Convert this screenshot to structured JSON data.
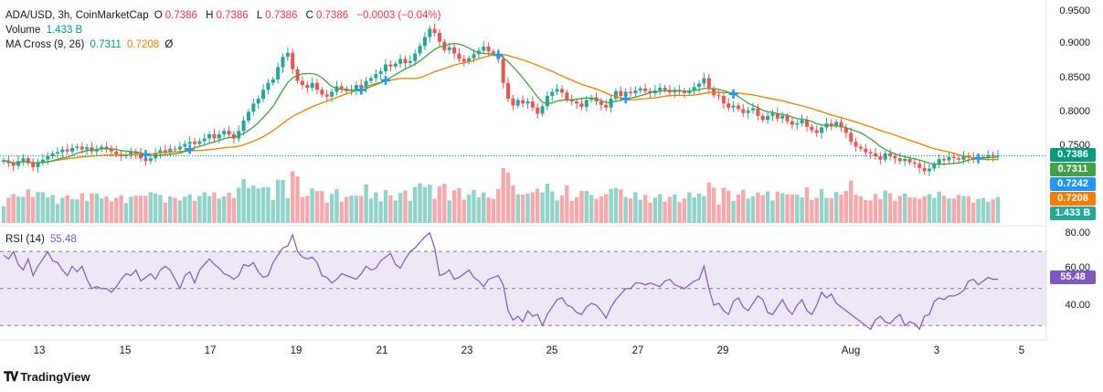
{
  "legend": {
    "symbol": "ADA/USD, 3h, CoinMarketCap",
    "o_label": "O",
    "o_val": "0.7386",
    "h_label": "H",
    "h_val": "0.7386",
    "l_label": "L",
    "l_val": "0.7386",
    "c_label": "C",
    "c_val": "0.7386",
    "change": "−0.0003 (−0.04%)",
    "volume_label": "Volume",
    "volume_val": "1.433 B",
    "ma_label": "MA Cross (9, 26)",
    "ma_fast": "0.7311",
    "ma_slow": "0.7208",
    "ma_extra": "Ø",
    "rsi_label": "RSI (14)",
    "rsi_val": "55.48"
  },
  "price_axis": {
    "ticks": [
      "0.9500",
      "0.9000",
      "0.8500",
      "0.8000",
      "0.7500"
    ],
    "tags": {
      "last": "0.7386",
      "ma_fast": "0.7311",
      "mid": "0.7242",
      "ma_slow": "0.7208",
      "volume": "1.433 B"
    }
  },
  "rsi_axis": {
    "ticks": [
      "80.00",
      "60.00",
      "40.00"
    ],
    "tag": "55.48"
  },
  "x_axis": {
    "labels": [
      "13",
      "15",
      "17",
      "19",
      "21",
      "23",
      "25",
      "27",
      "29",
      "Aug",
      "3",
      "5"
    ]
  },
  "brand": {
    "name": "TradingView"
  },
  "colors": {
    "up": "#26a69a",
    "down": "#ef5350",
    "vol_up": "#8fd3c9",
    "vol_down": "#f7a8ad",
    "ma_fast": "#43a047",
    "ma_slow": "#f57c00",
    "rsi": "#7e57c2",
    "rsi_band": "#ede7f6",
    "cross": "#2196f3"
  },
  "chart_data": [
    {
      "type": "candlestick",
      "title": "ADA/USD, 3h, CoinMarketCap",
      "ylim": [
        0.7,
        0.955
      ],
      "x_ticks": [
        "13",
        "15",
        "17",
        "19",
        "21",
        "23",
        "25",
        "27",
        "29",
        "Aug",
        "3",
        "5"
      ],
      "y_ticks": [
        0.95,
        0.9,
        0.85,
        0.8,
        0.75
      ],
      "last_price": 0.7386,
      "ma_fast_last": 0.7311,
      "ma_slow_last": 0.7208,
      "close": [
        0.732,
        0.728,
        0.724,
        0.731,
        0.735,
        0.728,
        0.722,
        0.729,
        0.733,
        0.738,
        0.742,
        0.744,
        0.748,
        0.745,
        0.75,
        0.752,
        0.748,
        0.751,
        0.745,
        0.748,
        0.752,
        0.749,
        0.745,
        0.741,
        0.738,
        0.74,
        0.744,
        0.742,
        0.735,
        0.731,
        0.735,
        0.743,
        0.747,
        0.744,
        0.749,
        0.748,
        0.752,
        0.756,
        0.759,
        0.756,
        0.76,
        0.764,
        0.77,
        0.764,
        0.77,
        0.775,
        0.77,
        0.764,
        0.775,
        0.79,
        0.803,
        0.815,
        0.822,
        0.835,
        0.845,
        0.85,
        0.868,
        0.883,
        0.889,
        0.865,
        0.848,
        0.842,
        0.838,
        0.845,
        0.835,
        0.828,
        0.825,
        0.832,
        0.84,
        0.837,
        0.833,
        0.835,
        0.842,
        0.838,
        0.848,
        0.852,
        0.858,
        0.862,
        0.872,
        0.869,
        0.873,
        0.88,
        0.874,
        0.877,
        0.888,
        0.899,
        0.912,
        0.924,
        0.918,
        0.905,
        0.893,
        0.897,
        0.888,
        0.88,
        0.876,
        0.881,
        0.887,
        0.892,
        0.898,
        0.891,
        0.888,
        0.88,
        0.845,
        0.822,
        0.812,
        0.82,
        0.815,
        0.818,
        0.809,
        0.8,
        0.811,
        0.826,
        0.832,
        0.836,
        0.831,
        0.821,
        0.818,
        0.815,
        0.81,
        0.82,
        0.824,
        0.818,
        0.813,
        0.809,
        0.822,
        0.833,
        0.826,
        0.832,
        0.83,
        0.834,
        0.837,
        0.833,
        0.83,
        0.834,
        0.838,
        0.835,
        0.831,
        0.834,
        0.832,
        0.83,
        0.834,
        0.839,
        0.844,
        0.852,
        0.836,
        0.827,
        0.826,
        0.815,
        0.809,
        0.812,
        0.807,
        0.801,
        0.805,
        0.808,
        0.797,
        0.791,
        0.797,
        0.801,
        0.793,
        0.797,
        0.789,
        0.784,
        0.786,
        0.791,
        0.781,
        0.776,
        0.772,
        0.78,
        0.786,
        0.783,
        0.788,
        0.78,
        0.772,
        0.759,
        0.752,
        0.749,
        0.744,
        0.742,
        0.738,
        0.733,
        0.742,
        0.738,
        0.735,
        0.731,
        0.734,
        0.729,
        0.727,
        0.721,
        0.716,
        0.72,
        0.726,
        0.734,
        0.732,
        0.737,
        0.735,
        0.733,
        0.739,
        0.736,
        0.733,
        0.736,
        0.737,
        0.74,
        0.738,
        0.739
      ]
    },
    {
      "type": "bar",
      "title": "Volume",
      "last_value": "1.433 B"
    },
    {
      "type": "line",
      "title": "RSI (14)",
      "ylim": [
        24,
        84
      ],
      "y_ticks": [
        80,
        60,
        40
      ],
      "band": [
        30,
        70
      ],
      "midline": 50,
      "last_value": 55.48,
      "series": [
        {
          "name": "RSI (14)",
          "values": [
            68,
            66,
            70,
            63,
            60,
            66,
            57,
            62,
            66,
            70,
            65,
            64,
            60,
            57,
            62,
            59,
            62,
            55,
            50,
            51,
            50,
            50,
            48,
            51,
            55,
            58,
            57,
            60,
            54,
            56,
            58,
            55,
            60,
            62,
            60,
            55,
            50,
            57,
            59,
            53,
            60,
            63,
            66,
            63,
            61,
            58,
            57,
            55,
            57,
            63,
            62,
            64,
            59,
            56,
            57,
            64,
            68,
            72,
            73,
            79,
            70,
            67,
            66,
            67,
            64,
            57,
            56,
            53,
            55,
            58,
            57,
            56,
            55,
            58,
            62,
            60,
            61,
            65,
            67,
            69,
            63,
            61,
            66,
            70,
            72,
            75,
            78,
            80,
            72,
            57,
            58,
            60,
            55,
            56,
            58,
            60,
            56,
            54,
            51,
            55,
            56,
            57,
            52,
            38,
            33,
            35,
            32,
            38,
            35,
            36,
            30,
            36,
            40,
            44,
            45,
            41,
            40,
            37,
            36,
            40,
            42,
            41,
            38,
            34,
            40,
            44,
            47,
            50,
            50,
            53,
            53,
            52,
            53,
            52,
            51,
            54,
            55,
            52,
            51,
            50,
            52,
            54,
            55,
            62,
            50,
            41,
            42,
            38,
            36,
            43,
            45,
            40,
            38,
            42,
            46,
            44,
            37,
            36,
            40,
            44,
            39,
            36,
            41,
            44,
            38,
            36,
            41,
            48,
            45,
            47,
            42,
            40,
            38,
            36,
            34,
            32,
            30,
            28,
            33,
            35,
            32,
            31,
            34,
            36,
            30,
            32,
            31,
            28,
            35,
            36,
            43,
            45,
            44,
            46,
            46,
            47,
            49,
            54,
            55,
            52,
            54,
            56,
            55,
            55
          ]
        }
      ]
    }
  ]
}
